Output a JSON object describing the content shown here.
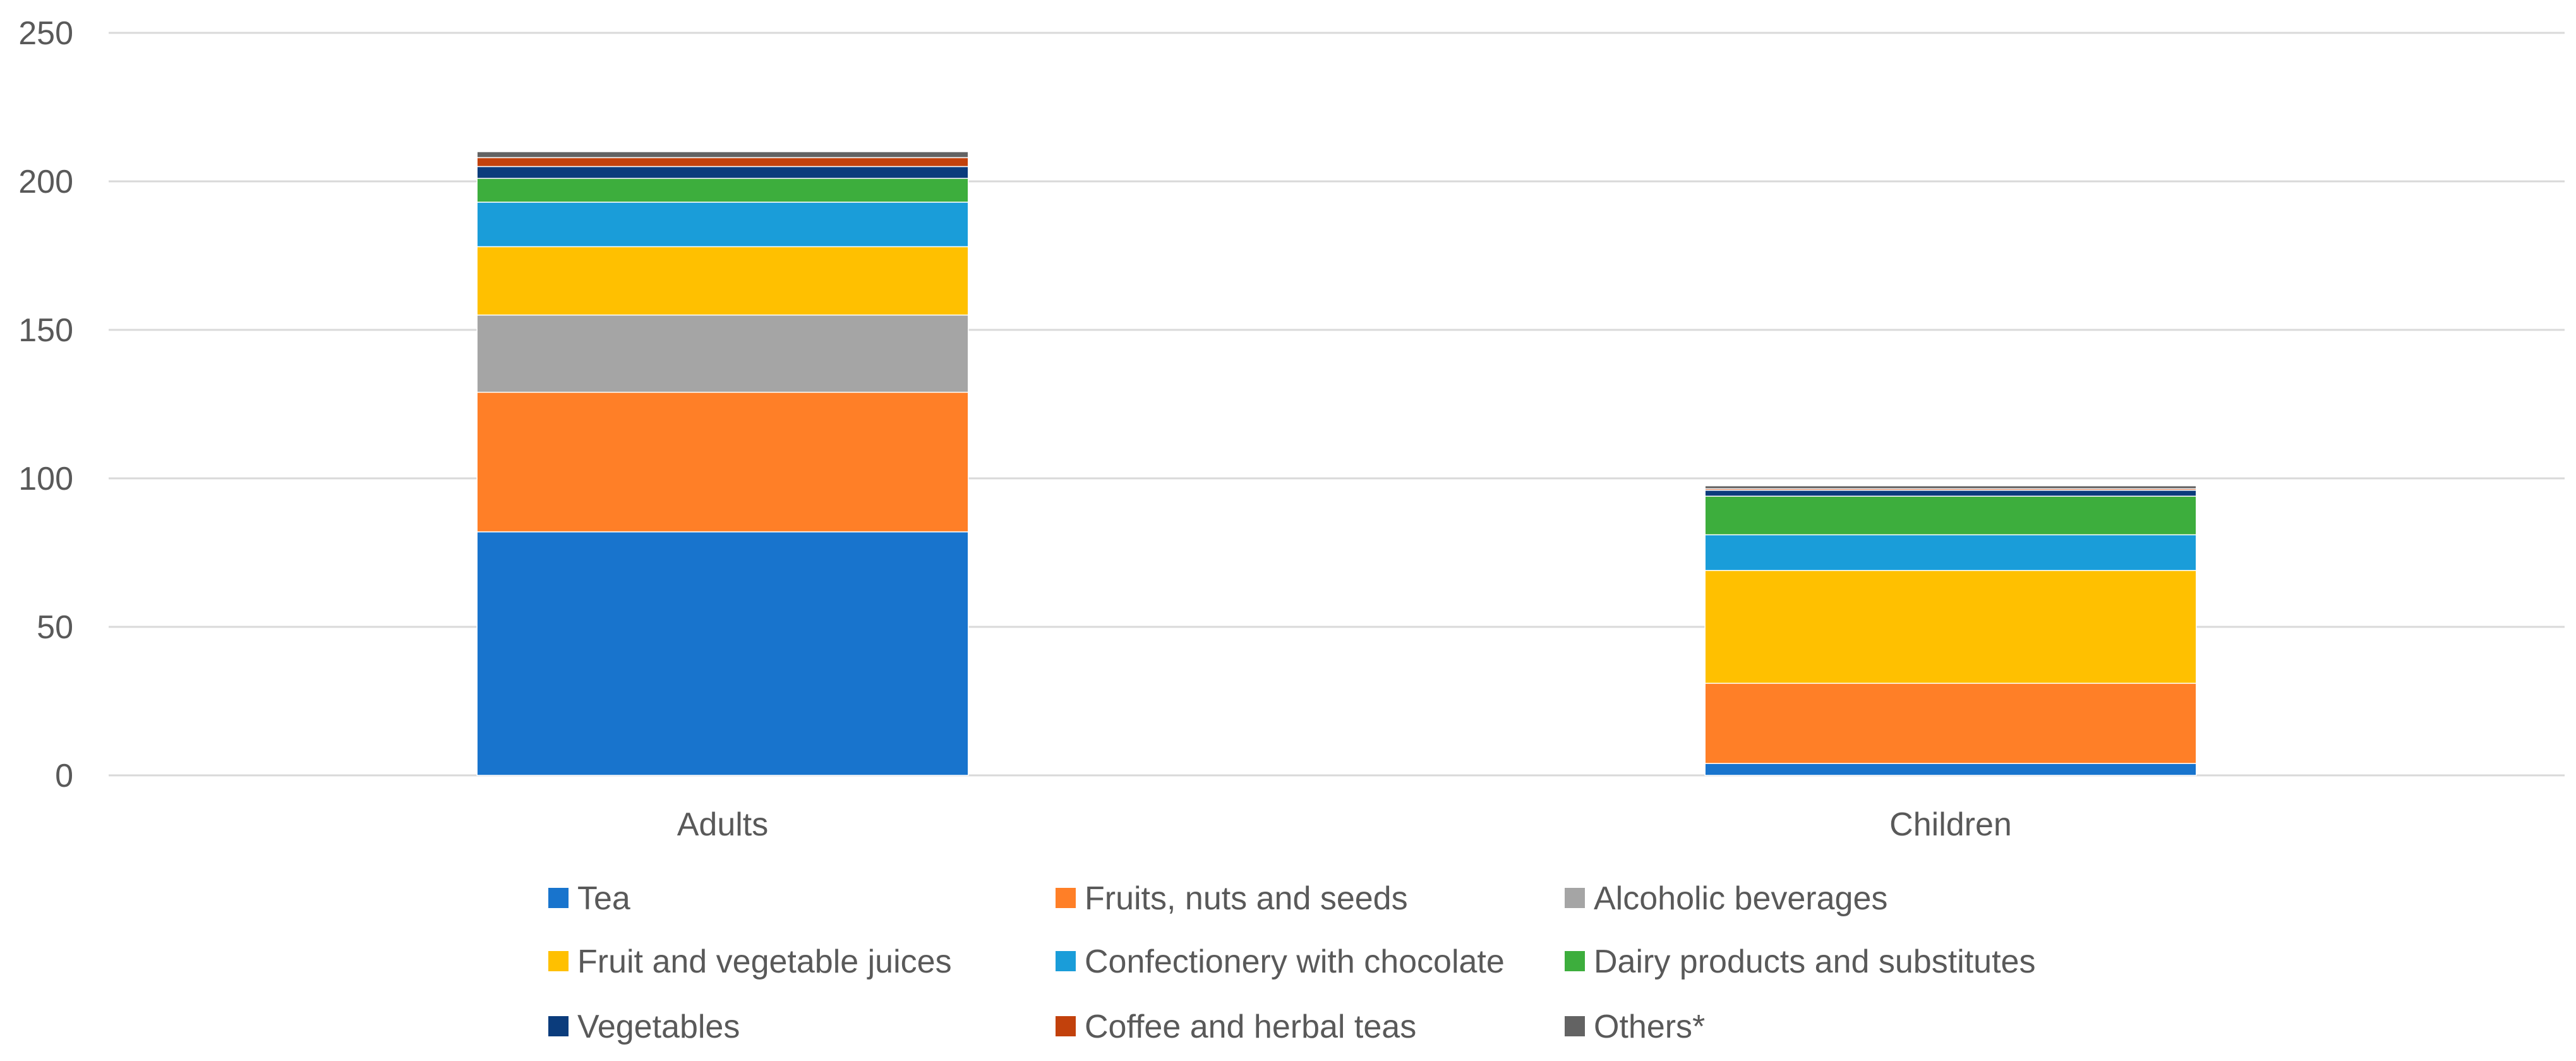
{
  "chart_data": {
    "type": "bar",
    "stacked": true,
    "title": "",
    "xlabel": "",
    "ylabel": "",
    "ylim": [
      0,
      250
    ],
    "yticks": [
      0,
      50,
      100,
      150,
      200,
      250
    ],
    "grid": true,
    "legend_position": "bottom",
    "categories": [
      "Adults",
      "Children"
    ],
    "series": [
      {
        "name": "Tea",
        "color": "#1874CD",
        "values": [
          82,
          4
        ]
      },
      {
        "name": "Fruits, nuts and seeds",
        "color": "#FF7F27",
        "values": [
          47,
          27
        ]
      },
      {
        "name": "Alcoholic beverages",
        "color": "#A5A5A5",
        "values": [
          26,
          0
        ]
      },
      {
        "name": "Fruit and vegetable juices",
        "color": "#FFC000",
        "values": [
          23,
          38
        ]
      },
      {
        "name": "Confectionery with chocolate",
        "color": "#1A9DD9",
        "values": [
          15,
          12
        ]
      },
      {
        "name": "Dairy products and substitutes",
        "color": "#3DAE3D",
        "values": [
          8,
          13
        ]
      },
      {
        "name": "Vegetables",
        "color": "#0B3C7C",
        "values": [
          4,
          2
        ]
      },
      {
        "name": "Coffee and herbal teas",
        "color": "#C2410C",
        "values": [
          3,
          0.5
        ]
      },
      {
        "name": "Others*",
        "color": "#636363",
        "values": [
          2,
          1
        ]
      }
    ]
  }
}
